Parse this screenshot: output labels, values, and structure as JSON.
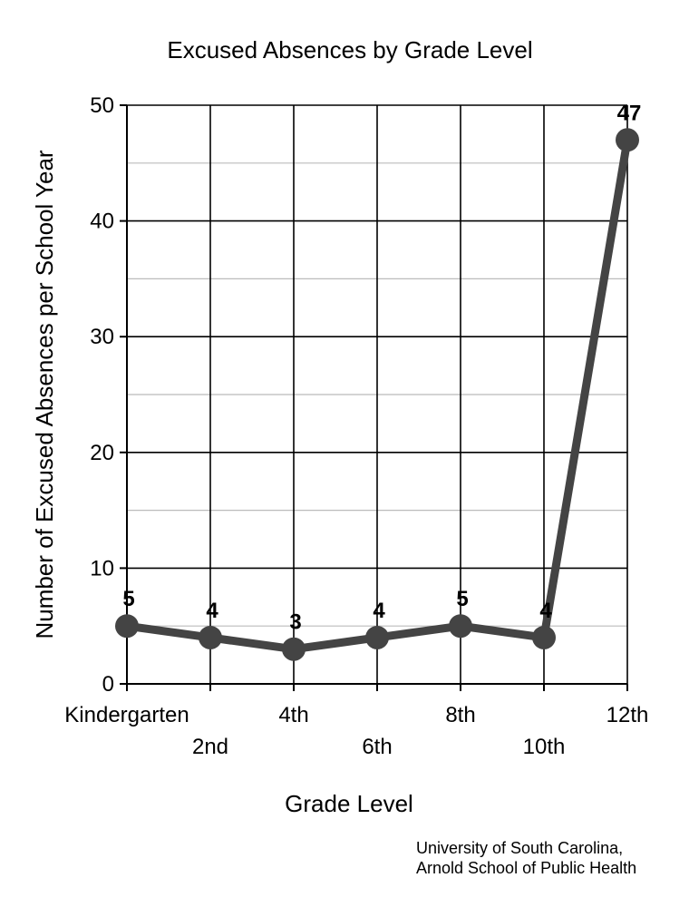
{
  "chart_data": {
    "type": "line",
    "title": "Excused Absences by Grade Level",
    "xlabel": "Grade Level",
    "ylabel": "Number of Excused Absences per School Year",
    "categories": [
      "Kindergarten",
      "2nd",
      "4th",
      "6th",
      "8th",
      "10th",
      "12th"
    ],
    "series": [
      {
        "values": [
          5,
          4,
          3,
          4,
          5,
          4,
          47
        ]
      }
    ],
    "ylim": [
      0,
      50
    ],
    "yticks": [
      0,
      10,
      20,
      30,
      40,
      50
    ],
    "grid": true,
    "data_labels": true,
    "line_color": "#444444"
  },
  "credit": {
    "line1": "University of South Carolina,",
    "line2": "Arnold School of Public Health"
  }
}
